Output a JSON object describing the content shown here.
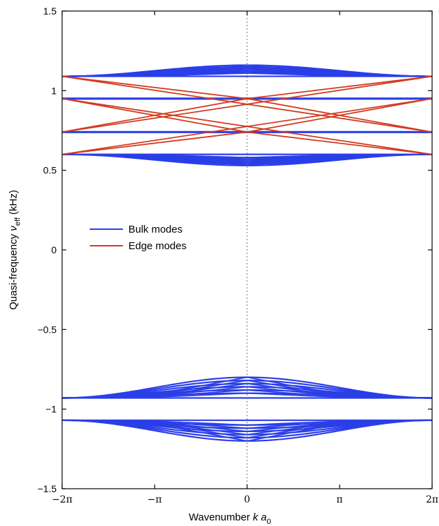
{
  "chart_data": {
    "type": "line",
    "xlabel": {
      "prefix": "Wavenumber ",
      "var": "k a",
      "sub": "0"
    },
    "ylabel": {
      "prefix": "Quasi-frequency ",
      "var": "ν",
      "sub": "eff",
      "suffix": " (kHz)"
    },
    "xlim": [
      -6.2832,
      6.2832
    ],
    "ylim": [
      -1.5,
      1.5
    ],
    "x_ticks": [
      {
        "value": -6.2832,
        "label": "−2π"
      },
      {
        "value": -3.1416,
        "label": "−π"
      },
      {
        "value": 0,
        "label": "0"
      },
      {
        "value": 3.1416,
        "label": "π"
      },
      {
        "value": 6.2832,
        "label": "2π"
      }
    ],
    "y_ticks": [
      {
        "value": 1.5,
        "label": "1.5"
      },
      {
        "value": 1,
        "label": "1"
      },
      {
        "value": 0.5,
        "label": "0.5"
      },
      {
        "value": 0,
        "label": "0"
      },
      {
        "value": -0.5,
        "label": "−0.5"
      },
      {
        "value": -1,
        "label": "−1"
      },
      {
        "value": -1.5,
        "label": "−1.5"
      }
    ],
    "vline": {
      "x": 0,
      "style": "dotted",
      "color": "#999999"
    },
    "legend": {
      "position": "center-left",
      "entries": [
        {
          "name": "Bulk modes",
          "color": "#2a3ee8"
        },
        {
          "name": "Edge modes",
          "color": "#d23a1f"
        }
      ]
    },
    "bulk_modes": {
      "color": "#2a3ee8",
      "bands": [
        {
          "y_at_edge": 1.09,
          "y_at_center": [
            1.09,
            1.11,
            1.12,
            1.13,
            1.14,
            1.15,
            1.16
          ]
        },
        {
          "y_at_edge": 0.95,
          "y_at_center": [
            0.95
          ]
        },
        {
          "y_at_edge": 0.74,
          "y_at_center": [
            0.74
          ]
        },
        {
          "y_at_edge": 0.6,
          "y_at_center": [
            0.6,
            0.58,
            0.57,
            0.56,
            0.55,
            0.54,
            0.53
          ]
        },
        {
          "y_at_edge": -0.93,
          "y_at_center": [
            -0.93,
            -0.9,
            -0.88,
            -0.86,
            -0.84,
            -0.82,
            -0.8
          ]
        },
        {
          "y_at_edge": -1.07,
          "y_at_center": [
            -1.07,
            -1.1,
            -1.12,
            -1.14,
            -1.16,
            -1.18,
            -1.2
          ]
        }
      ]
    },
    "edge_modes": {
      "color": "#d23a1f",
      "lines": [
        {
          "x": [
            -6.2832,
            6.2832
          ],
          "y": [
            1.09,
            0.74
          ]
        },
        {
          "x": [
            -6.2832,
            6.2832
          ],
          "y": [
            0.74,
            1.09
          ]
        },
        {
          "x": [
            -6.2832,
            6.2832
          ],
          "y": [
            0.95,
            0.6
          ]
        },
        {
          "x": [
            -6.2832,
            6.2832
          ],
          "y": [
            0.6,
            0.95
          ]
        },
        {
          "x": [
            -6.2832,
            0
          ],
          "y": [
            0.95,
            0.74
          ]
        },
        {
          "x": [
            0,
            6.2832
          ],
          "y": [
            0.74,
            0.95
          ]
        },
        {
          "x": [
            -6.2832,
            0
          ],
          "y": [
            0.74,
            0.95
          ]
        },
        {
          "x": [
            0,
            6.2832
          ],
          "y": [
            0.95,
            0.74
          ]
        },
        {
          "x": [
            -6.2832,
            0
          ],
          "y": [
            1.09,
            0.95
          ]
        },
        {
          "x": [
            0,
            6.2832
          ],
          "y": [
            0.95,
            1.09
          ]
        },
        {
          "x": [
            -6.2832,
            0
          ],
          "y": [
            0.6,
            0.74
          ]
        },
        {
          "x": [
            0,
            6.2832
          ],
          "y": [
            0.74,
            0.6
          ]
        }
      ]
    }
  }
}
